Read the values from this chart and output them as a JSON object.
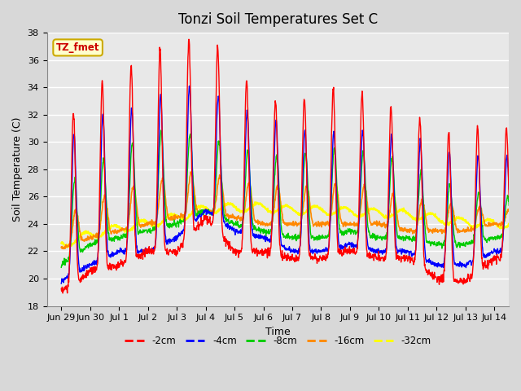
{
  "title": "Tonzi Soil Temperatures Set C",
  "xlabel": "Time",
  "ylabel": "Soil Temperature (C)",
  "ylim": [
    18,
    38
  ],
  "xlim_start": -0.5,
  "xlim_end": 15.5,
  "tick_labels": [
    "Jun 29",
    "Jun 30",
    "Jul 1",
    "Jul 2",
    "Jul 3",
    "Jul 4",
    "Jul 5",
    "Jul 6",
    "Jul 7",
    "Jul 8",
    "Jul 9",
    "Jul 10",
    "Jul 11",
    "Jul 12",
    "Jul 13",
    "Jul 14"
  ],
  "tick_positions": [
    0,
    1,
    2,
    3,
    4,
    5,
    6,
    7,
    8,
    9,
    10,
    11,
    12,
    13,
    14,
    15
  ],
  "annotation_text": "TZ_fmet",
  "annotation_bg": "#FFFFCC",
  "annotation_border": "#CCAA00",
  "colors": {
    "-2cm": "#FF0000",
    "-4cm": "#0000FF",
    "-8cm": "#00CC00",
    "-16cm": "#FF8800",
    "-32cm": "#FFFF00"
  },
  "legend_labels": [
    "-2cm",
    "-4cm",
    "-8cm",
    "-16cm",
    "-32cm"
  ],
  "fig_bg_color": "#D8D8D8",
  "plot_bg": "#E8E8E8",
  "grid_color": "#FFFFFF",
  "title_fontsize": 12,
  "yticks": [
    18,
    20,
    22,
    24,
    26,
    28,
    30,
    32,
    34,
    36,
    38
  ]
}
